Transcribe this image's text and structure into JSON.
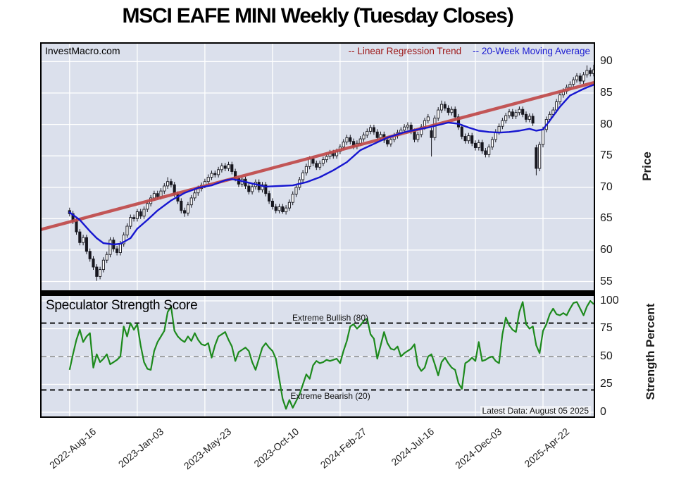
{
  "title": "MSCI EAFE MINI Weekly (Tuesday Closes)",
  "watermark": "InvestMacro.com",
  "legend": {
    "trend": "-- Linear Regression Trend",
    "ma": "-- 20-Week Moving Average"
  },
  "price_axis": {
    "title": "Price",
    "ticks": [
      90,
      85,
      80,
      75,
      70,
      65,
      60,
      55
    ]
  },
  "strength_axis": {
    "title": "Strength Percent",
    "ticks": [
      100,
      75,
      50,
      25,
      0
    ]
  },
  "strength_panel": {
    "title": "Speculator Strength Score",
    "bullish_label": "Extreme Bullish (80)",
    "bearish_label": "Extreme Bearish (20)",
    "latest": "Latest Data: August 05 2025"
  },
  "colors": {
    "plot_bg": "#dbe0ec",
    "grid": "#ffffff",
    "trend_line": "#c04a4a",
    "trend_legend": "#9c1414",
    "ma_line": "#1616d0",
    "ma_legend": "#1b1bd1",
    "candle": "#17171f",
    "candle_up_fill": "#ffffff",
    "strength_line": "#1d8a1d",
    "extreme_dash": "#000000",
    "mid_dash": "#8a8a8a"
  },
  "chart_data": [
    {
      "type": "candlestick",
      "name": "price-panel",
      "start_date": "2022-08-16",
      "interval": "weekly",
      "x_range": [
        -8.3,
        155
      ],
      "y_range": [
        53.6,
        92.85
      ],
      "x_ticks_weeks": [
        0,
        20,
        40,
        60,
        80,
        100,
        120,
        140
      ],
      "x_tick_labels": [
        "2022-Aug-16",
        "2023-Jan-03",
        "2023-May-23",
        "2023-Oct-10",
        "2024-Feb-27",
        "2024-Jul-16",
        "2024-Dec-03",
        "2025-Apr-22"
      ],
      "first_open": 66.3,
      "wick_pad": 0.45,
      "closes": [
        65.8,
        64.6,
        62.9,
        61.2,
        62.0,
        59.8,
        58.6,
        57.3,
        55.8,
        56.9,
        58.4,
        59.3,
        61.6,
        60.2,
        59.6,
        61.0,
        62.4,
        63.8,
        65.2,
        65.0,
        66.1,
        65.4,
        66.5,
        67.4,
        68.3,
        69.0,
        68.5,
        69.4,
        70.2,
        70.9,
        70.4,
        68.9,
        67.8,
        66.3,
        65.9,
        67.2,
        68.3,
        69.1,
        69.8,
        70.3,
        70.9,
        71.6,
        72.2,
        72.0,
        72.8,
        73.4,
        73.0,
        73.6,
        72.5,
        71.4,
        70.5,
        71.3,
        70.2,
        69.3,
        70.1,
        70.8,
        69.6,
        70.4,
        69.0,
        67.8,
        66.9,
        66.3,
        66.9,
        66.1,
        66.7,
        67.6,
        68.9,
        70.0,
        71.2,
        72.3,
        73.3,
        74.5,
        73.8,
        73.2,
        73.8,
        74.4,
        74.9,
        75.5,
        75.0,
        75.7,
        76.4,
        77.2,
        77.9,
        77.3,
        76.5,
        77.0,
        77.7,
        78.3,
        78.9,
        79.5,
        78.8,
        77.9,
        78.4,
        77.5,
        76.9,
        77.6,
        78.2,
        78.7,
        79.1,
        79.6,
        79.9,
        78.9,
        77.6,
        78.4,
        79.6,
        80.6,
        81.2,
        77.9,
        81.0,
        82.3,
        83.2,
        82.6,
        81.9,
        82.4,
        81.2,
        79.6,
        78.1,
        77.4,
        78.2,
        77.0,
        76.3,
        77.1,
        75.8,
        75.2,
        76.4,
        77.6,
        78.8,
        79.7,
        80.6,
        81.4,
        82.0,
        81.3,
        81.9,
        82.4,
        81.6,
        80.8,
        81.3,
        80.2,
        73.0,
        76.8,
        79.2,
        80.8,
        81.6,
        82.3,
        83.6,
        84.7,
        85.3,
        85.9,
        86.4,
        87.1,
        87.7,
        86.9,
        87.9,
        88.6,
        88.1,
        88.7
      ],
      "open_overrides": {
        "107": 79.0,
        "138": 76.3
      },
      "low_overrides": {
        "8": 55.1,
        "34": 65.3,
        "63": 65.8,
        "107": 74.9,
        "138": 71.9
      },
      "high_overrides": {
        "29": 71.6,
        "110": 83.8,
        "153": 89.4,
        "155": 89.5
      },
      "ma20_points": [
        [
          0,
          66.0
        ],
        [
          3,
          64.8
        ],
        [
          6,
          63.0
        ],
        [
          8,
          61.9
        ],
        [
          10,
          61.1
        ],
        [
          13,
          60.9
        ],
        [
          15,
          61.0
        ],
        [
          18,
          61.9
        ],
        [
          20,
          63.4
        ],
        [
          23,
          64.8
        ],
        [
          26,
          66.3
        ],
        [
          30,
          67.9
        ],
        [
          34,
          69.1
        ],
        [
          38,
          69.9
        ],
        [
          42,
          70.3
        ],
        [
          46,
          71.1
        ],
        [
          48,
          71.3
        ],
        [
          50,
          71.1
        ],
        [
          54,
          70.6
        ],
        [
          58,
          70.1
        ],
        [
          62,
          70.2
        ],
        [
          66,
          70.3
        ],
        [
          70,
          70.8
        ],
        [
          74,
          71.6
        ],
        [
          78,
          72.7
        ],
        [
          82,
          74.0
        ],
        [
          86,
          75.9
        ],
        [
          90,
          76.9
        ],
        [
          94,
          77.9
        ],
        [
          98,
          78.6
        ],
        [
          100,
          78.9
        ],
        [
          103,
          79.2
        ],
        [
          106,
          79.5
        ],
        [
          109,
          79.9
        ],
        [
          112,
          80.3
        ],
        [
          115,
          80.1
        ],
        [
          118,
          79.5
        ],
        [
          121,
          79.0
        ],
        [
          124,
          78.8
        ],
        [
          127,
          78.7
        ],
        [
          130,
          78.8
        ],
        [
          133,
          79.0
        ],
        [
          136,
          79.3
        ],
        [
          138,
          79.0
        ],
        [
          140,
          79.2
        ],
        [
          142,
          80.6
        ],
        [
          145,
          82.8
        ],
        [
          148,
          84.6
        ],
        [
          151,
          85.4
        ],
        [
          153,
          85.9
        ],
        [
          155,
          86.3
        ]
      ],
      "trend": {
        "start_week": -8.3,
        "start_value": 63.3,
        "end_week": 155,
        "end_value": 86.65
      }
    },
    {
      "type": "line",
      "name": "speculator-strength-score",
      "y_range": [
        -3.8,
        104.4
      ],
      "y_ticks": [
        100,
        75,
        50,
        25,
        0
      ],
      "levels": {
        "bullish": 80,
        "mid": 50,
        "bearish": 20
      },
      "values": [
        38,
        52,
        65,
        74,
        63,
        68,
        71,
        40,
        52,
        45,
        48,
        52,
        43,
        45,
        47,
        50,
        77,
        68,
        80,
        74,
        79,
        60,
        45,
        39,
        38,
        55,
        63,
        68,
        73,
        90,
        95,
        73,
        68,
        65,
        63,
        68,
        64,
        71,
        65,
        61,
        60,
        62,
        49,
        60,
        68,
        70,
        72,
        65,
        59,
        46,
        54,
        56,
        58,
        55,
        45,
        38,
        48,
        58,
        62,
        58,
        55,
        48,
        30,
        12,
        3,
        11,
        4,
        10,
        16,
        25,
        34,
        30,
        42,
        46,
        44,
        45,
        47,
        46,
        47,
        48,
        44,
        55,
        64,
        77,
        79,
        75,
        78,
        82,
        84,
        70,
        66,
        48,
        60,
        72,
        62,
        57,
        56,
        59,
        50,
        53,
        55,
        57,
        61,
        42,
        37,
        40,
        50,
        52,
        43,
        33,
        45,
        49,
        44,
        40,
        38,
        26,
        21,
        44,
        46,
        49,
        46,
        63,
        46,
        47,
        49,
        50,
        46,
        44,
        70,
        85,
        78,
        74,
        72,
        90,
        99,
        79,
        75,
        77,
        60,
        53,
        73,
        79,
        88,
        93,
        88,
        87,
        89,
        87,
        93,
        98,
        99,
        93,
        87,
        95,
        100,
        97
      ]
    }
  ]
}
